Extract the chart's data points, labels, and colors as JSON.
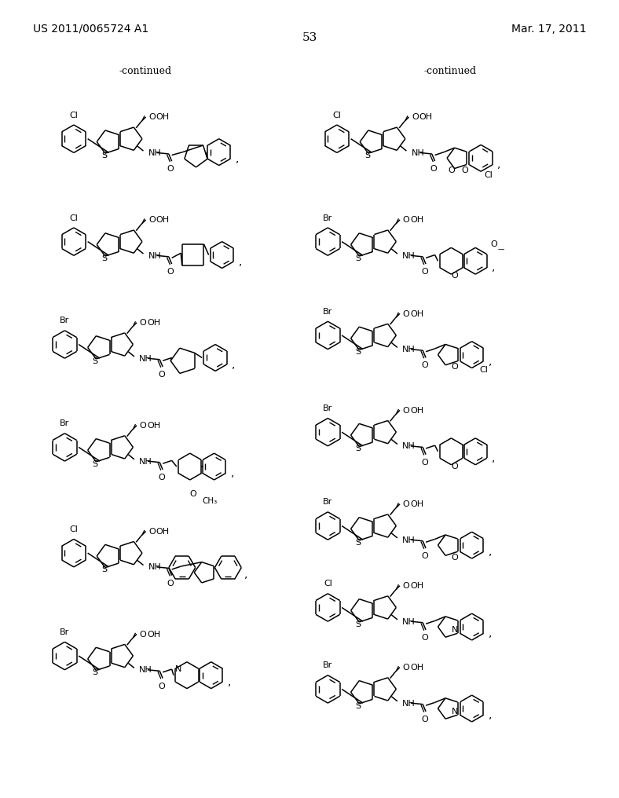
{
  "background_color": "#ffffff",
  "header_left": "US 2011/0065724 A1",
  "header_right": "Mar. 17, 2011",
  "page_number": "53",
  "continued_left": "-continued",
  "continued_right": "-continued"
}
